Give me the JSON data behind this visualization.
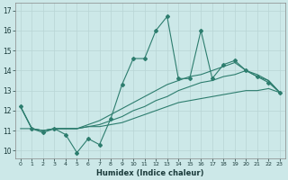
{
  "xlabel": "Humidex (Indice chaleur)",
  "x_values": [
    0,
    1,
    2,
    3,
    4,
    5,
    6,
    7,
    8,
    9,
    10,
    11,
    12,
    13,
    14,
    15,
    16,
    17,
    18,
    19,
    20,
    21,
    22,
    23
  ],
  "line1": [
    12.2,
    11.1,
    10.9,
    11.1,
    10.8,
    9.9,
    10.6,
    10.3,
    11.6,
    13.3,
    14.6,
    14.6,
    16.0,
    16.7,
    13.6,
    13.6,
    16.0,
    13.6,
    14.3,
    14.5,
    14.0,
    13.7,
    13.4,
    12.9
  ],
  "line2": [
    11.1,
    11.1,
    11.0,
    11.1,
    11.1,
    11.1,
    11.2,
    11.2,
    11.3,
    11.4,
    11.6,
    11.8,
    12.0,
    12.2,
    12.4,
    12.5,
    12.6,
    12.7,
    12.8,
    12.9,
    13.0,
    13.0,
    13.1,
    12.9
  ],
  "line3": [
    12.2,
    11.1,
    11.0,
    11.1,
    11.1,
    11.1,
    11.2,
    11.3,
    11.5,
    11.7,
    12.0,
    12.2,
    12.5,
    12.7,
    13.0,
    13.2,
    13.4,
    13.5,
    13.7,
    13.8,
    14.0,
    13.7,
    13.5,
    12.9
  ],
  "line4": [
    12.2,
    11.1,
    11.0,
    11.1,
    11.1,
    11.1,
    11.3,
    11.5,
    11.8,
    12.1,
    12.4,
    12.7,
    13.0,
    13.3,
    13.5,
    13.7,
    13.8,
    14.0,
    14.2,
    14.4,
    14.0,
    13.8,
    13.5,
    12.9
  ],
  "bg_color": "#cce8e8",
  "grid_color": "#b8d5d5",
  "line_color": "#2d7d6e",
  "ylim": [
    9.6,
    17.4
  ],
  "yticks": [
    10,
    11,
    12,
    13,
    14,
    15,
    16,
    17
  ],
  "xticks": [
    0,
    1,
    2,
    3,
    4,
    5,
    6,
    7,
    8,
    9,
    10,
    11,
    12,
    13,
    14,
    15,
    16,
    17,
    18,
    19,
    20,
    21,
    22,
    23
  ]
}
